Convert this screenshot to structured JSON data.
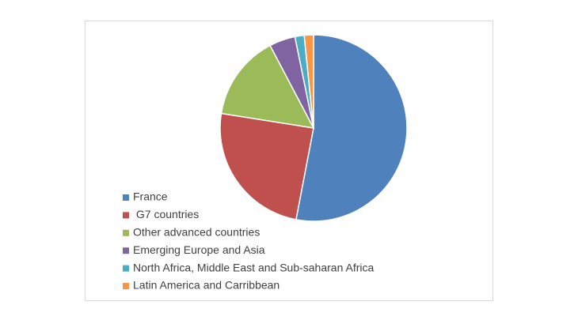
{
  "chart_data": {
    "type": "pie",
    "categories": [
      "France",
      " G7 countries",
      "Other advanced countries",
      "Emerging Europe and Asia",
      "North Africa, Middle East and Sub-saharan Africa",
      "Latin America and Carribbean"
    ],
    "values": [
      53,
      24.5,
      14.8,
      4.5,
      1.6,
      1.6
    ],
    "colors": [
      "#4f81bd",
      "#c0504d",
      "#9bbb59",
      "#8064a2",
      "#4bacc6",
      "#f79646"
    ],
    "legend": "bottom-left"
  }
}
